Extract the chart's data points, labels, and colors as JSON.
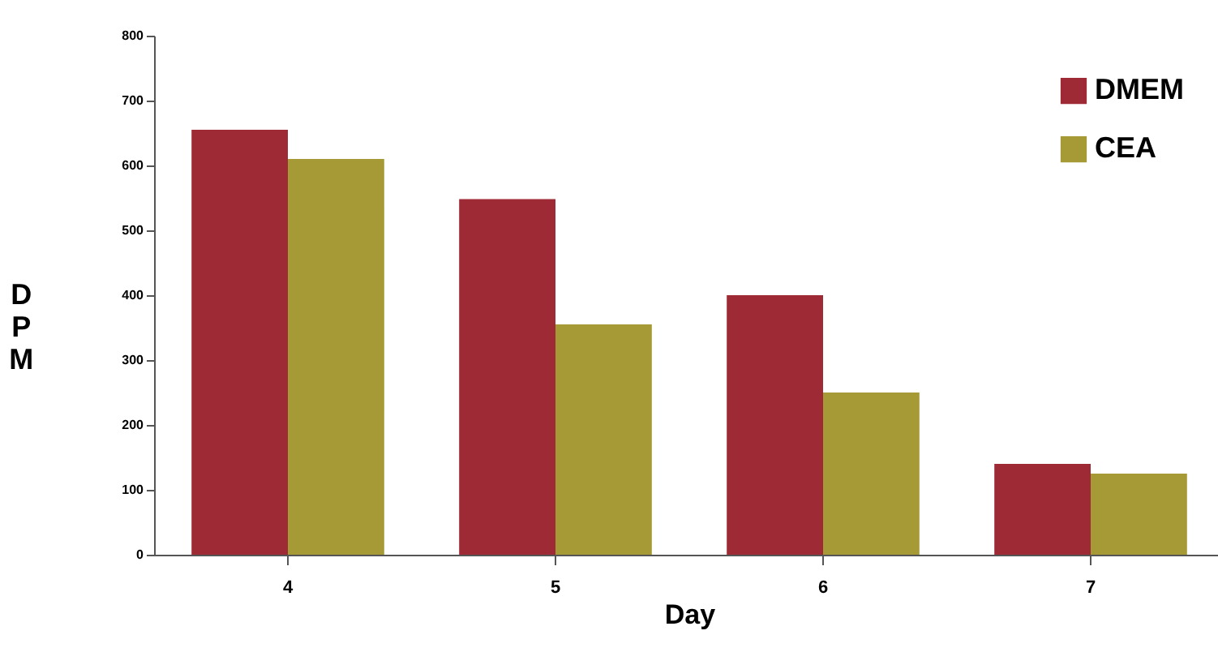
{
  "chart_data": {
    "type": "bar",
    "xlabel": "Day",
    "ylabel": "DPM",
    "categories": [
      "4",
      "5",
      "6",
      "7"
    ],
    "series": [
      {
        "name": "DMEM",
        "color": "#9e2a36",
        "values": [
          655,
          548,
          400,
          140
        ]
      },
      {
        "name": "CEA",
        "color": "#a59a35",
        "values": [
          610,
          355,
          250,
          125
        ]
      }
    ],
    "ylim": [
      0,
      800
    ],
    "yticks": [
      0,
      100,
      200,
      300,
      400,
      500,
      600,
      700,
      800
    ],
    "grid": false,
    "legend": "top right"
  }
}
